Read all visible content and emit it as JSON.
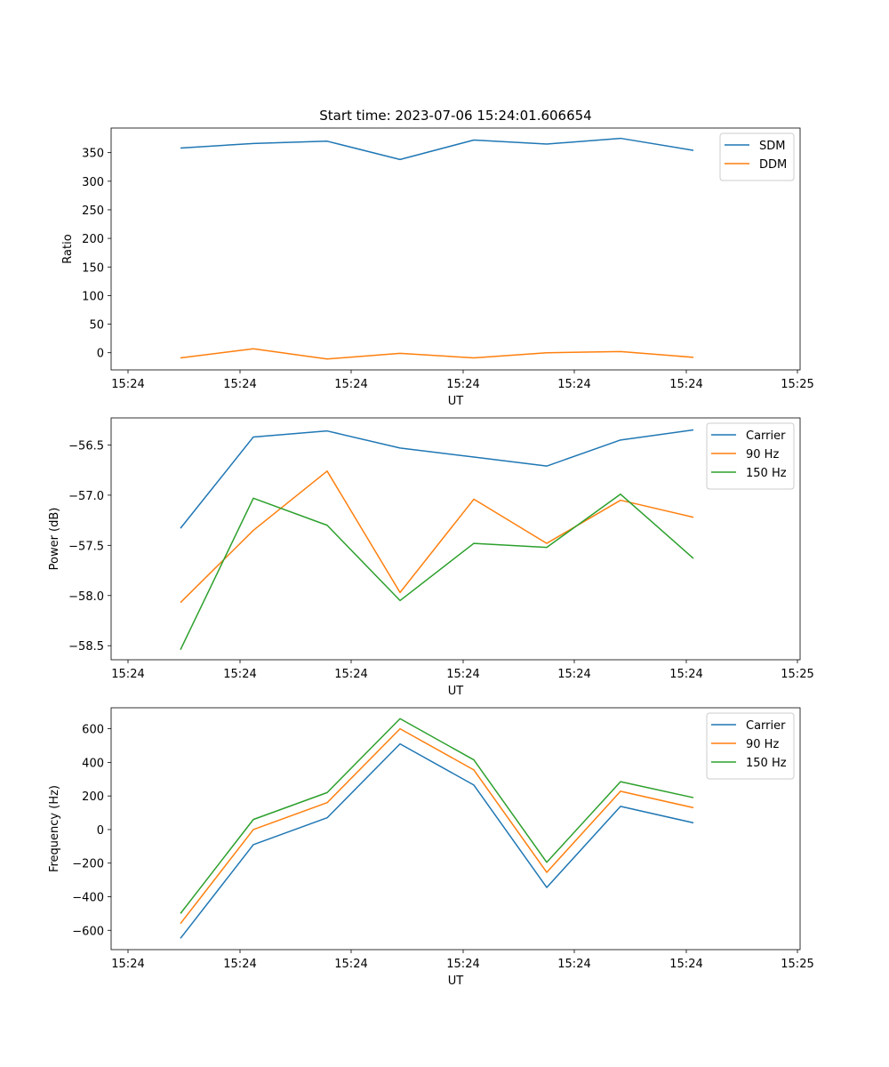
{
  "chart_data": [
    {
      "type": "line",
      "title": "Start time: 2023-07-06 15:24:01.606654",
      "xlabel": "UT",
      "ylabel": "Ratio",
      "x_tick_labels": [
        "15:24",
        "15:24",
        "15:24",
        "15:24",
        "15:24",
        "15:24",
        "15:25"
      ],
      "y_ticks": [
        0,
        50,
        100,
        150,
        200,
        250,
        300,
        350
      ],
      "y_tick_labels": [
        "0",
        "50",
        "100",
        "150",
        "200",
        "250",
        "300",
        "350"
      ],
      "ylim": [
        -30,
        393
      ],
      "legend_position": "top-right",
      "grid": false,
      "series": [
        {
          "name": "SDM",
          "color": "#1f77b4",
          "values": [
            358,
            366,
            370,
            338,
            372,
            365,
            375,
            354
          ]
        },
        {
          "name": "DDM",
          "color": "#ff7f0e",
          "values": [
            -9,
            7,
            -11,
            -1,
            -9,
            0,
            2,
            -8
          ]
        }
      ]
    },
    {
      "type": "line",
      "title": "",
      "xlabel": "UT",
      "ylabel": "Power (dB)",
      "x_tick_labels": [
        "15:24",
        "15:24",
        "15:24",
        "15:24",
        "15:24",
        "15:24",
        "15:25"
      ],
      "y_ticks": [
        -58.5,
        -58.0,
        -57.5,
        -57.0,
        -56.5
      ],
      "y_tick_labels": [
        "−58.5",
        "−58.0",
        "−57.5",
        "−57.0",
        "−56.5"
      ],
      "ylim": [
        -58.64,
        -56.23
      ],
      "legend_position": "top-right",
      "grid": false,
      "series": [
        {
          "name": "Carrier",
          "color": "#1f77b4",
          "values": [
            -57.33,
            -56.42,
            -56.36,
            -56.53,
            -56.62,
            -56.71,
            -56.45,
            -56.35
          ]
        },
        {
          "name": "90 Hz",
          "color": "#ff7f0e",
          "values": [
            -58.07,
            -57.35,
            -56.76,
            -57.97,
            -57.04,
            -57.48,
            -57.05,
            -57.22
          ]
        },
        {
          "name": "150 Hz",
          "color": "#2ca02c",
          "values": [
            -58.54,
            -57.03,
            -57.3,
            -58.05,
            -57.48,
            -57.52,
            -56.99,
            -57.63
          ]
        }
      ]
    },
    {
      "type": "line",
      "title": "",
      "xlabel": "UT",
      "ylabel": "Frequency (Hz)",
      "x_tick_labels": [
        "15:24",
        "15:24",
        "15:24",
        "15:24",
        "15:24",
        "15:24",
        "15:25"
      ],
      "y_ticks": [
        -600,
        -400,
        -200,
        0,
        200,
        400,
        600
      ],
      "y_tick_labels": [
        "−600",
        "−400",
        "−200",
        "0",
        "200",
        "400",
        "600"
      ],
      "ylim": [
        -715,
        725
      ],
      "legend_position": "top-right",
      "grid": false,
      "series": [
        {
          "name": "Carrier",
          "color": "#1f77b4",
          "values": [
            -648,
            -90,
            70,
            510,
            265,
            -345,
            138,
            40
          ]
        },
        {
          "name": "90 Hz",
          "color": "#ff7f0e",
          "values": [
            -560,
            0,
            160,
            600,
            355,
            -255,
            228,
            130
          ]
        },
        {
          "name": "150 Hz",
          "color": "#2ca02c",
          "values": [
            -500,
            60,
            220,
            660,
            415,
            -195,
            285,
            190
          ]
        }
      ]
    }
  ]
}
